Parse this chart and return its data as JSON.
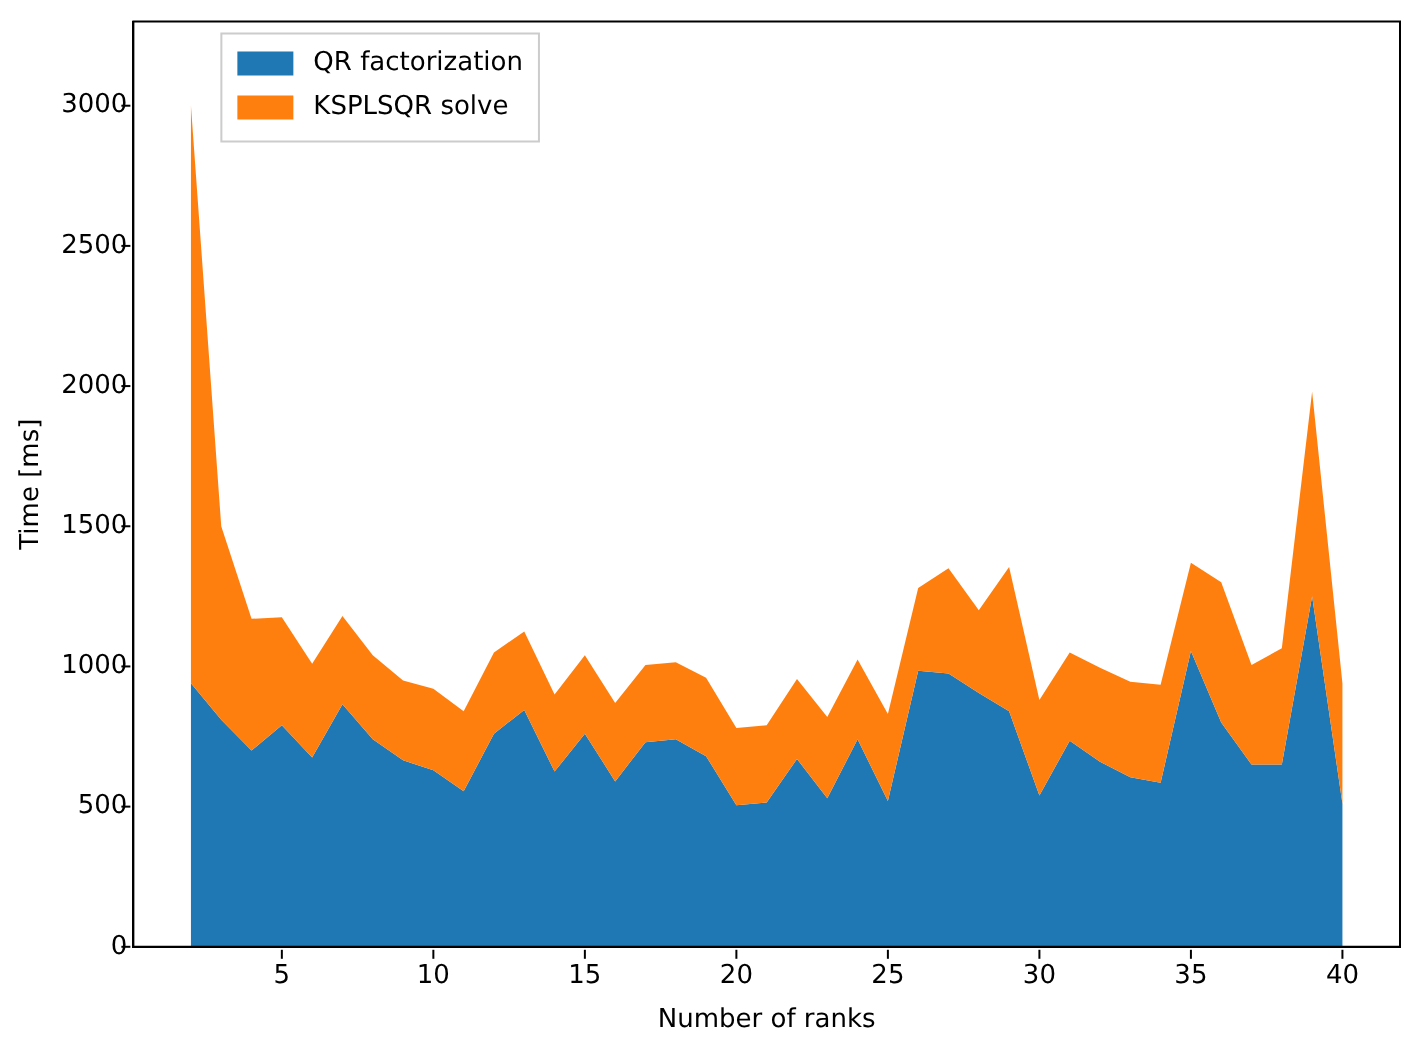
{
  "chart_data": {
    "type": "area",
    "stacked": true,
    "xlabel": "Number of ranks",
    "ylabel": "Time [ms]",
    "x": [
      2,
      3,
      4,
      5,
      6,
      7,
      8,
      9,
      10,
      11,
      12,
      13,
      14,
      15,
      16,
      17,
      18,
      19,
      20,
      21,
      22,
      23,
      24,
      25,
      26,
      27,
      28,
      29,
      30,
      31,
      32,
      33,
      34,
      35,
      36,
      37,
      38,
      39,
      40
    ],
    "series": [
      {
        "name": "QR factorization",
        "color": "#1f77b4",
        "values": [
          940,
          810,
          700,
          790,
          675,
          865,
          740,
          665,
          630,
          555,
          760,
          845,
          625,
          760,
          590,
          730,
          740,
          680,
          505,
          515,
          670,
          530,
          740,
          520,
          985,
          975,
          905,
          840,
          540,
          735,
          660,
          605,
          585,
          1055,
          800,
          650,
          650,
          1250,
          510
        ]
      },
      {
        "name": "KSPLSQR solve",
        "color": "#ff7f0e",
        "values": [
          2060,
          690,
          470,
          385,
          335,
          315,
          300,
          285,
          290,
          285,
          290,
          280,
          275,
          280,
          280,
          275,
          275,
          280,
          275,
          275,
          285,
          290,
          285,
          310,
          295,
          375,
          295,
          515,
          340,
          315,
          335,
          340,
          350,
          315,
          500,
          355,
          415,
          730,
          430
        ]
      }
    ],
    "xlim": [
      0.1,
      41.9
    ],
    "xticks": [
      5,
      10,
      15,
      20,
      25,
      30,
      35,
      40
    ],
    "ylim": [
      0,
      3300
    ],
    "yticks": [
      0,
      500,
      1000,
      1500,
      2000,
      2500,
      3000
    ],
    "legend": "top left",
    "grid": false
  }
}
